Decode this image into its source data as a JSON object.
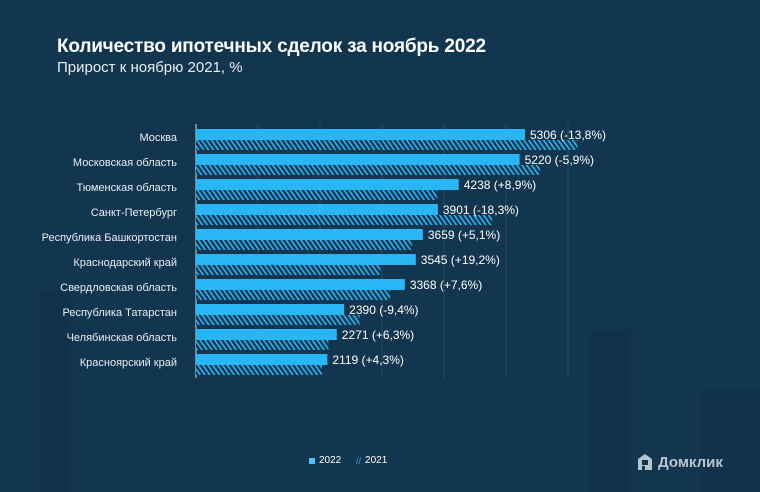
{
  "title": "Количество ипотечных сделок за ноябрь 2022",
  "subtitle": "Прирост к ноябрю 2021, %",
  "colors": {
    "background": "#12364f",
    "bar_2022": "#29b6f6",
    "bar_2021_hatch": "#29b6f6",
    "grid": "#2a4c64"
  },
  "logo": "Домклик",
  "chart_data": {
    "type": "bar",
    "orientation": "horizontal",
    "categories": [
      "Москва",
      "Московская область",
      "Тюменская область",
      "Санкт-Петербург",
      "Республика Башкортостан",
      "Краснодарский край",
      "Свердловская область",
      "Республика Татарстан",
      "Челябинская область",
      "Красноярский край"
    ],
    "series": [
      {
        "name": "2022",
        "values": [
          5306,
          5220,
          4238,
          3901,
          3659,
          3545,
          3368,
          2390,
          2271,
          2119
        ],
        "style": "solid"
      },
      {
        "name": "2021",
        "values": [
          6155,
          5547,
          3892,
          4775,
          3481,
          2974,
          3130,
          2638,
          2136,
          2032
        ],
        "style": "hatched"
      }
    ],
    "data_labels": [
      "5306 (-13,8%)",
      "5220 (-5,9%)",
      "4238 (+8,9%)",
      "3901 (-18,3%)",
      "3659 (+5,1%)",
      "3545 (+19,2%)",
      "3368 (+7,6%)",
      "2390 (-9,4%)",
      "2271 (+6,3%)",
      "2119 (+4,3%)"
    ],
    "xlim": [
      0,
      6000
    ],
    "grid": true,
    "legend": [
      "2022",
      "2021"
    ],
    "legend_placement": "bottom"
  }
}
